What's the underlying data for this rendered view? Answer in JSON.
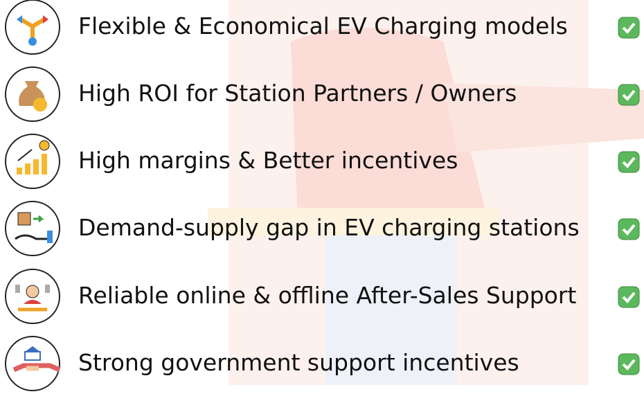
{
  "items": [
    "Flexible & Economical EV Charging models",
    "High ROI for Station Partners / Owners",
    "High margins & Better incentives",
    "Demand-supply gap in EV charging stations",
    "Reliable online & offline After-Sales Support",
    "Strong government support incentives"
  ]
}
